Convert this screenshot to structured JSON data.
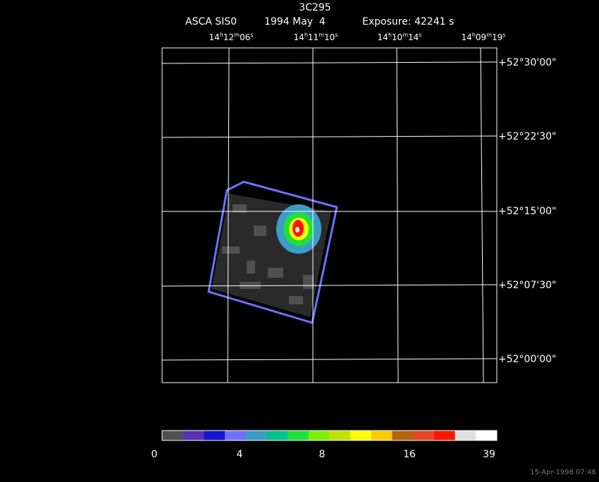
{
  "header": {
    "title": "3C295",
    "instrument": "ASCA SIS0",
    "date": "1994 May  4",
    "exposure": "Exposure: 42241 s"
  },
  "ra_labels": [
    [
      "14",
      "h",
      "12",
      "m",
      "06",
      "s"
    ],
    [
      "14",
      "h",
      "11",
      "m",
      "10",
      "s"
    ],
    [
      "14",
      "h",
      "10",
      "m",
      "14",
      "s"
    ],
    [
      "14",
      "h",
      "09",
      "m",
      "19",
      "s"
    ]
  ],
  "dec_labels": [
    "+52°30'00\"",
    "+52°22'30\"",
    "+52°15'00\"",
    "+52°07'30\"",
    "+52°00'00\""
  ],
  "colorbar": {
    "labels": [
      "0",
      "4",
      "8",
      "16",
      "39"
    ],
    "colors": [
      "#505050",
      "#5a30b8",
      "#1414d2",
      "#7070ff",
      "#3c9cc8",
      "#00c08c",
      "#1ee03c",
      "#7cf000",
      "#c0e000",
      "#ffff00",
      "#ffc800",
      "#b4640a",
      "#e64628",
      "#ff1400",
      "#e0e0e0",
      "#ffffff"
    ]
  },
  "footer": "15-Apr-1998 07:46"
}
